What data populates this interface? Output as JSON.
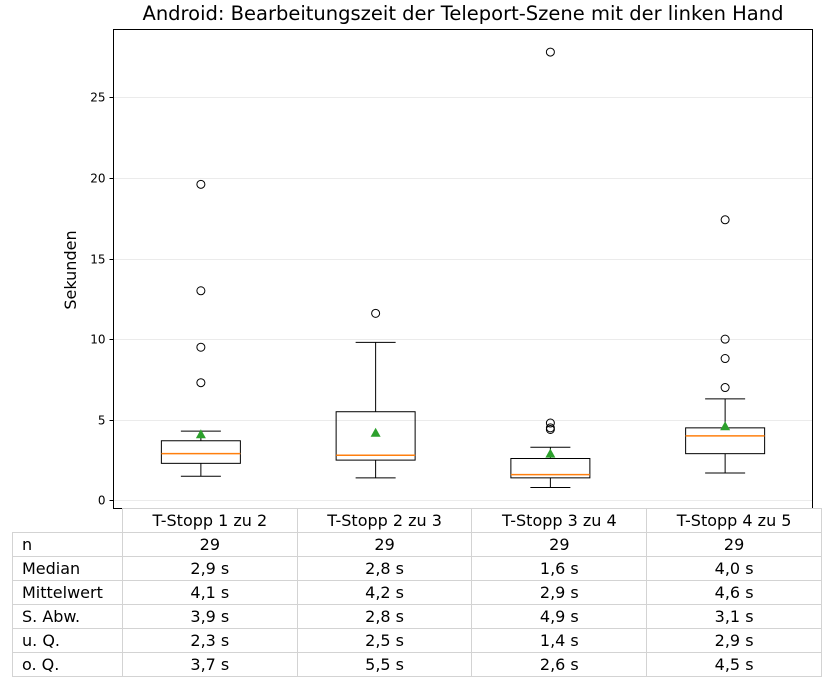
{
  "chart_data": {
    "type": "box",
    "title": "Android: Bearbeitungszeit der Teleport-Szene mit der linken Hand",
    "ylabel": "Sekunden",
    "ylim": [
      -0.5,
      29.2
    ],
    "yticks": [
      0,
      5,
      10,
      15,
      20,
      25
    ],
    "grid": "y",
    "categories": [
      "T-Stopp 1 zu 2",
      "T-Stopp 2 zu 3",
      "T-Stopp 3 zu 4",
      "T-Stopp 4 zu 5"
    ],
    "boxes": [
      {
        "whisker_low": 1.5,
        "q1": 2.3,
        "median": 2.9,
        "q3": 3.7,
        "whisker_high": 4.3,
        "mean": 4.1,
        "outliers": [
          7.3,
          9.5,
          13.0,
          19.6
        ]
      },
      {
        "whisker_low": 1.4,
        "q1": 2.5,
        "median": 2.8,
        "q3": 5.5,
        "whisker_high": 9.8,
        "mean": 4.2,
        "outliers": [
          11.6
        ]
      },
      {
        "whisker_low": 0.8,
        "q1": 1.4,
        "median": 1.6,
        "q3": 2.6,
        "whisker_high": 3.3,
        "mean": 2.9,
        "outliers": [
          4.4,
          4.5,
          4.8,
          27.8
        ]
      },
      {
        "whisker_low": 1.7,
        "q1": 2.9,
        "median": 4.0,
        "q3": 4.5,
        "whisker_high": 6.3,
        "mean": 4.6,
        "outliers": [
          7.0,
          8.8,
          10.0,
          17.4
        ]
      }
    ],
    "colors": {
      "median": "#ff7f0e",
      "mean": "#2ca02c",
      "box": "#000000",
      "grid": "#ebebeb"
    }
  },
  "table": {
    "rows": [
      {
        "label": "n",
        "values": [
          "29",
          "29",
          "29",
          "29"
        ]
      },
      {
        "label": "Median",
        "values": [
          "2,9 s",
          "2,8 s",
          "1,6 s",
          "4,0 s"
        ]
      },
      {
        "label": "Mittelwert",
        "values": [
          "4,1 s",
          "4,2 s",
          "2,9 s",
          "4,6 s"
        ]
      },
      {
        "label": "S. Abw.",
        "values": [
          "3,9 s",
          "2,8 s",
          "4,9 s",
          "3,1 s"
        ]
      },
      {
        "label": "u. Q.",
        "values": [
          "2,3 s",
          "2,5 s",
          "1,4 s",
          "2,9 s"
        ]
      },
      {
        "label": "o. Q.",
        "values": [
          "3,7 s",
          "5,5 s",
          "2,6 s",
          "4,5 s"
        ]
      }
    ]
  }
}
